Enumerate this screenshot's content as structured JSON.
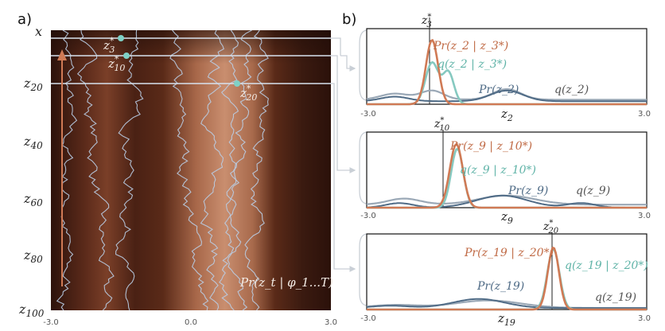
{
  "colors": {
    "dark_brown": "#3b1a12",
    "light_brown": "#c98e6f",
    "trajectory": "#b9cde4",
    "highlight_line": "#d7e2ee",
    "marker": "#7fd1c6",
    "arrow": "#d07a55",
    "post_orange": "#d07a55",
    "post_teal": "#86c9c0",
    "prior_blue": "#4f6b86",
    "marginal_grey": "#9aa8b6",
    "bracket": "#c9cfd6"
  },
  "panel_a": {
    "letter": "a)",
    "top_label": "x",
    "y_labels": [
      {
        "text": "z",
        "sub": "20"
      },
      {
        "text": "z",
        "sub": "40"
      },
      {
        "text": "z",
        "sub": "60"
      },
      {
        "text": "z",
        "sub": "80"
      },
      {
        "text": "z",
        "sub": "100"
      }
    ],
    "x_ticks": [
      "-3.0",
      "0.0",
      "3.0"
    ],
    "markers": [
      {
        "text": "z",
        "sup": "*",
        "sub": "3"
      },
      {
        "text": "z",
        "sup": "*",
        "sub": "10"
      },
      {
        "text": "z",
        "sup": "*",
        "sub": "20"
      }
    ],
    "legend": "Pr(z_t | φ_1...T)"
  },
  "panel_b": {
    "letter": "b)",
    "subpanels": [
      {
        "line_label": {
          "text": "z",
          "sup": "*",
          "sub": "3"
        },
        "posterior_label": "Pr(z_2 | z_3*)",
        "approx_label": "q(z_2 | z_3*)",
        "prior_label": "Pr(z_2)",
        "marginal_label": "q(z_2)",
        "x_label": {
          "text": "z",
          "sub": "2"
        },
        "x_ticks": [
          "-3.0",
          "3.0"
        ]
      },
      {
        "line_label": {
          "text": "z",
          "sup": "*",
          "sub": "10"
        },
        "posterior_label": "Pr(z_9 | z_10*)",
        "approx_label": "q(z_9 | z_10*)",
        "prior_label": "Pr(z_9)",
        "marginal_label": "q(z_9)",
        "x_label": {
          "text": "z",
          "sub": "9"
        },
        "x_ticks": [
          "-3.0",
          "3.0"
        ]
      },
      {
        "line_label": {
          "text": "z",
          "sup": "*",
          "sub": "20"
        },
        "posterior_label": "Pr(z_19 | z_20*)",
        "approx_label": "q(z_19 | z_20*)",
        "prior_label": "Pr(z_19)",
        "marginal_label": "q(z_19)",
        "x_label": {
          "text": "z",
          "sub": "19"
        },
        "x_ticks": [
          "-3.0",
          "3.0"
        ]
      }
    ]
  }
}
